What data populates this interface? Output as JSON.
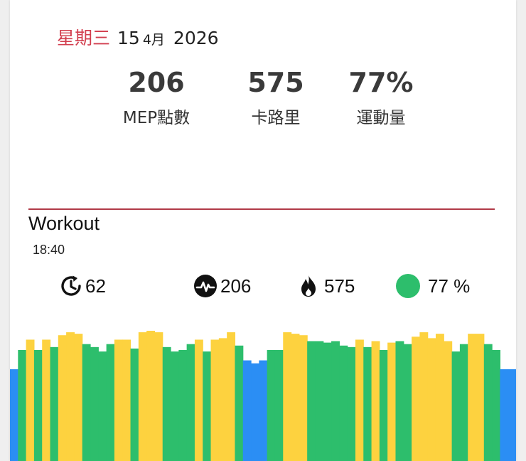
{
  "date": {
    "weekday": "星期三",
    "day": "15",
    "month": "4月",
    "year": "2026"
  },
  "summary": [
    {
      "value": "206",
      "label": "MEP點數"
    },
    {
      "value": "575",
      "label": "卡路里"
    },
    {
      "value": "77%",
      "label": "運動量"
    }
  ],
  "workout": {
    "title": "Workout",
    "time": "18:40"
  },
  "metrics": {
    "duration": {
      "value": "62",
      "icon": "timer-icon"
    },
    "mep": {
      "value": "206",
      "icon": "heartbeat-icon"
    },
    "calories": {
      "value": "575",
      "icon": "flame-icon"
    },
    "effort": {
      "value": "77 %",
      "icon": "green-dot-icon"
    }
  },
  "colors": {
    "weekday": "#d23e4e",
    "divider": "#b13a48",
    "blue": "#2b8ef4",
    "green": "#2dbe6c",
    "yellow": "#fdd23f"
  },
  "chart_data": {
    "type": "bar",
    "values": [
      0.62,
      0.75,
      0.82,
      0.75,
      0.82,
      0.77,
      0.85,
      0.87,
      0.86,
      0.79,
      0.77,
      0.74,
      0.79,
      0.82,
      0.82,
      0.76,
      0.87,
      0.88,
      0.87,
      0.77,
      0.74,
      0.75,
      0.79,
      0.82,
      0.74,
      0.82,
      0.83,
      0.87,
      0.78,
      0.68,
      0.66,
      0.68,
      0.75,
      0.75,
      0.87,
      0.86,
      0.85,
      0.81,
      0.81,
      0.8,
      0.81,
      0.78,
      0.77,
      0.82,
      0.77,
      0.81,
      0.75,
      0.8,
      0.81,
      0.79,
      0.84,
      0.87,
      0.83,
      0.86,
      0.81,
      0.74,
      0.79,
      0.86,
      0.86,
      0.79,
      0.75,
      0.62,
      0.62
    ],
    "colors": [
      "B",
      "G",
      "Y",
      "G",
      "Y",
      "G",
      "Y",
      "Y",
      "Y",
      "G",
      "G",
      "G",
      "G",
      "Y",
      "Y",
      "G",
      "Y",
      "Y",
      "Y",
      "G",
      "G",
      "G",
      "G",
      "Y",
      "G",
      "Y",
      "Y",
      "Y",
      "G",
      "B",
      "B",
      "B",
      "G",
      "G",
      "Y",
      "Y",
      "Y",
      "G",
      "G",
      "G",
      "G",
      "G",
      "G",
      "Y",
      "G",
      "Y",
      "G",
      "Y",
      "G",
      "G",
      "Y",
      "Y",
      "Y",
      "Y",
      "Y",
      "G",
      "G",
      "Y",
      "Y",
      "G",
      "G",
      "B",
      "B"
    ]
  }
}
